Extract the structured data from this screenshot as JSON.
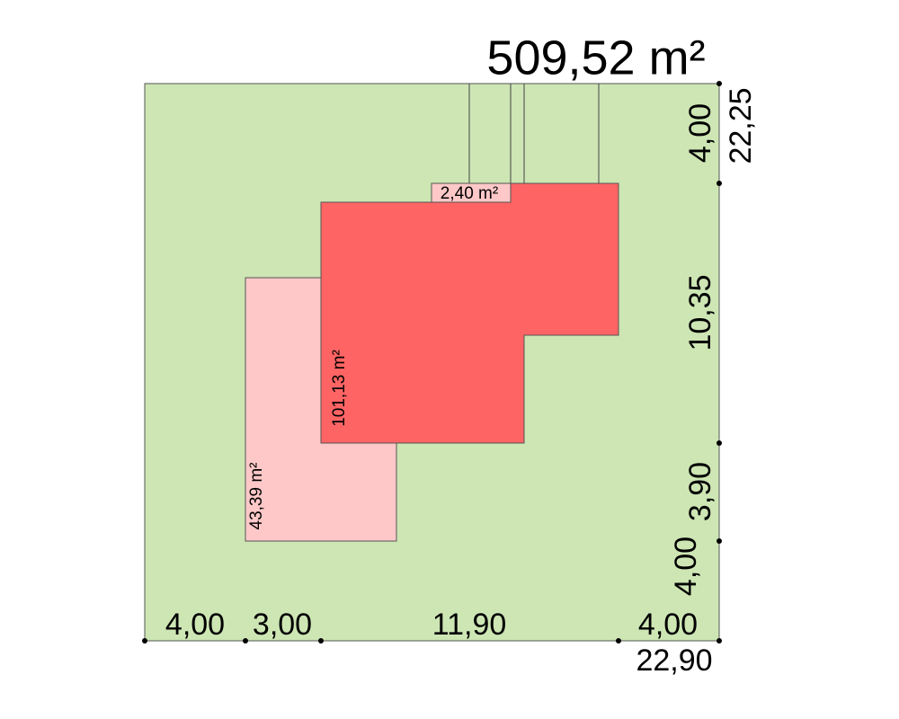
{
  "total_area": "509,52 m²",
  "areas": [
    "101,13 m²",
    "43,39 m²",
    "2,40 m²"
  ],
  "dimensions": {
    "bottom": [
      "4,00",
      "3,00",
      "11,90",
      "4,00"
    ],
    "bottom_total": "22,90",
    "right": [
      "4,00",
      "10,35",
      "3,90",
      "4,00"
    ],
    "right_total": "22,25"
  }
}
